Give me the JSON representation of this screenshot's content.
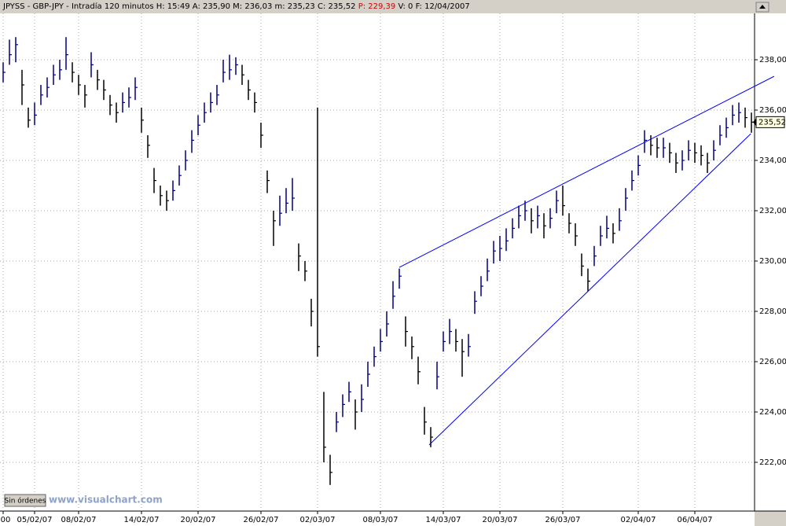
{
  "header": {
    "text": "JPYSS - GBP-JPY - Intradía 120 minutos  H: 15:49  A: 235,90  M: 236,03  m: 235,23  C: 235,52",
    "p": "P: 229,39",
    "rest": "V: 0  F: 12/04/2007"
  },
  "footer": {
    "button": "Sin órdenes",
    "watermark": "www.visualchart.com"
  },
  "chart_data": {
    "type": "ohlc",
    "categories": [
      "00",
      null,
      null,
      null,
      null,
      "05/02/07",
      null,
      null,
      null,
      null,
      null,
      null,
      "08/02/07",
      null,
      null,
      null,
      null,
      null,
      null,
      null,
      null,
      null,
      "14/02/07",
      null,
      null,
      null,
      null,
      null,
      null,
      null,
      null,
      "20/02/07",
      null,
      null,
      null,
      null,
      null,
      null,
      null,
      null,
      null,
      "26/02/07",
      null,
      null,
      null,
      null,
      null,
      null,
      null,
      null,
      "02/03/07",
      null,
      null,
      null,
      null,
      null,
      null,
      null,
      null,
      null,
      "08/03/07",
      null,
      null,
      null,
      null,
      null,
      null,
      null,
      null,
      null,
      "14/03/07",
      null,
      null,
      null,
      null,
      null,
      null,
      null,
      null,
      "20/03/07",
      null,
      null,
      null,
      null,
      null,
      null,
      null,
      null,
      null,
      "26/03/07",
      null,
      null,
      null,
      null,
      null,
      null,
      null,
      null,
      null,
      null,
      null,
      "02/04/07",
      null,
      null,
      null,
      null,
      null,
      null,
      null,
      null,
      "06/04/07",
      null,
      null,
      null,
      null,
      null,
      null,
      null,
      null,
      null
    ],
    "high": [
      237.9,
      238.8,
      238.9,
      237.6,
      236.1,
      236.3,
      237.0,
      237.3,
      237.8,
      238.0,
      238.9,
      237.9,
      237.4,
      237.0,
      238.3,
      237.6,
      237.2,
      236.6,
      236.3,
      236.7,
      236.9,
      237.3,
      236.1,
      235.0,
      233.7,
      233.0,
      232.8,
      233.2,
      233.8,
      234.4,
      235.2,
      235.8,
      236.3,
      236.7,
      237.0,
      238.0,
      238.2,
      238.1,
      237.8,
      237.2,
      236.7,
      235.5,
      233.6,
      232.0,
      232.6,
      232.9,
      233.3,
      230.7,
      230.0,
      228.5,
      236.1,
      224.8,
      222.3,
      224.0,
      224.7,
      225.2,
      224.5,
      225.1,
      226.0,
      226.6,
      227.3,
      228.0,
      229.2,
      229.7,
      227.8,
      227.0,
      226.2,
      224.2,
      223.4,
      226.0,
      227.2,
      227.7,
      227.3,
      226.9,
      227.1,
      228.8,
      229.4,
      230.1,
      230.8,
      231.0,
      231.3,
      231.7,
      232.2,
      232.4,
      232.1,
      232.2,
      231.9,
      232.1,
      232.8,
      233.0,
      231.9,
      231.5,
      230.3,
      229.7,
      230.6,
      231.4,
      231.8,
      231.5,
      232.1,
      232.9,
      233.6,
      234.2,
      235.2,
      235.0,
      234.9,
      234.9,
      234.7,
      234.3,
      234.4,
      234.8,
      234.7,
      234.6,
      234.3,
      234.8,
      235.4,
      235.7,
      236.2,
      236.3,
      236.1,
      235.9
    ],
    "low": [
      237.1,
      237.8,
      237.9,
      236.2,
      235.3,
      235.4,
      236.2,
      236.5,
      237.0,
      237.2,
      237.6,
      237.1,
      236.6,
      236.1,
      237.3,
      236.8,
      236.4,
      235.8,
      235.5,
      235.9,
      236.1,
      236.4,
      235.1,
      234.1,
      232.7,
      232.2,
      232.0,
      232.4,
      233.0,
      233.6,
      234.3,
      235.0,
      235.5,
      235.9,
      236.2,
      237.1,
      237.2,
      237.4,
      237.0,
      236.4,
      235.9,
      234.5,
      232.7,
      230.6,
      231.4,
      231.9,
      232.0,
      229.6,
      229.2,
      227.4,
      226.2,
      222.0,
      221.1,
      223.2,
      223.8,
      224.4,
      223.3,
      224.0,
      225.0,
      225.8,
      226.4,
      227.0,
      228.1,
      228.9,
      226.6,
      226.1,
      225.1,
      223.1,
      222.6,
      224.9,
      226.4,
      226.7,
      226.4,
      225.4,
      226.2,
      227.9,
      228.6,
      229.2,
      229.9,
      230.0,
      230.4,
      230.9,
      231.3,
      231.6,
      231.1,
      231.3,
      230.9,
      231.3,
      231.9,
      231.8,
      231.1,
      230.6,
      229.4,
      228.8,
      229.8,
      230.6,
      230.9,
      230.7,
      231.2,
      232.0,
      232.8,
      233.4,
      234.3,
      234.2,
      234.1,
      234.1,
      233.9,
      233.5,
      233.6,
      234.0,
      233.9,
      233.8,
      233.5,
      234.0,
      234.6,
      234.9,
      235.4,
      235.5,
      235.3,
      235.1
    ],
    "close": [
      237.5,
      238.2,
      238.6,
      237.0,
      235.6,
      235.8,
      236.6,
      236.9,
      237.4,
      237.6,
      238.2,
      237.5,
      237.0,
      236.6,
      237.8,
      237.2,
      236.8,
      236.2,
      235.9,
      236.3,
      236.5,
      236.9,
      235.6,
      234.6,
      233.2,
      232.6,
      232.4,
      232.8,
      233.4,
      234.0,
      234.8,
      235.4,
      235.9,
      236.3,
      236.6,
      237.5,
      237.6,
      237.8,
      237.4,
      236.8,
      236.3,
      235.0,
      233.2,
      231.6,
      231.9,
      232.3,
      232.5,
      230.2,
      229.6,
      228.0,
      226.6,
      222.6,
      221.6,
      223.6,
      224.3,
      224.8,
      224.0,
      224.5,
      225.5,
      226.2,
      226.8,
      227.5,
      228.6,
      229.4,
      227.2,
      226.6,
      225.6,
      223.6,
      223.0,
      225.4,
      226.8,
      227.2,
      226.8,
      226.4,
      226.6,
      228.4,
      229.0,
      229.6,
      230.4,
      230.5,
      230.8,
      231.3,
      231.8,
      232.0,
      231.6,
      231.8,
      231.4,
      231.7,
      232.4,
      232.2,
      231.5,
      231.0,
      229.8,
      229.2,
      230.2,
      231.0,
      231.3,
      231.1,
      231.6,
      232.5,
      233.2,
      233.8,
      234.8,
      234.6,
      234.5,
      234.5,
      234.3,
      233.9,
      234.0,
      234.4,
      234.3,
      234.2,
      233.9,
      234.4,
      235.0,
      235.3,
      235.8,
      235.9,
      235.7,
      235.52
    ],
    "up_color": "#000080",
    "down_color": "#000000",
    "last_price": {
      "value": 235.52,
      "label": "235,52"
    },
    "trendlines": [
      {
        "x": [
          63,
          122.6
        ],
        "y": [
          229.75,
          237.34
        ],
        "color": "#0000ff"
      },
      {
        "x": [
          67.75,
          118.9
        ],
        "y": [
          222.69,
          235.06
        ],
        "color": "#0000ff"
      }
    ],
    "ylim": [
      220,
      240
    ],
    "yticks": [
      {
        "value": 222,
        "label": "222,00"
      },
      {
        "value": 224,
        "label": "224,00"
      },
      {
        "value": 226,
        "label": "226,00"
      },
      {
        "value": 228,
        "label": "228,00"
      },
      {
        "value": 230,
        "label": "230,00"
      },
      {
        "value": 232,
        "label": "232,00"
      },
      {
        "value": 234,
        "label": "234,00"
      },
      {
        "value": 236,
        "label": "236,00"
      },
      {
        "value": 238,
        "label": "238,00"
      }
    ],
    "grid": true
  }
}
